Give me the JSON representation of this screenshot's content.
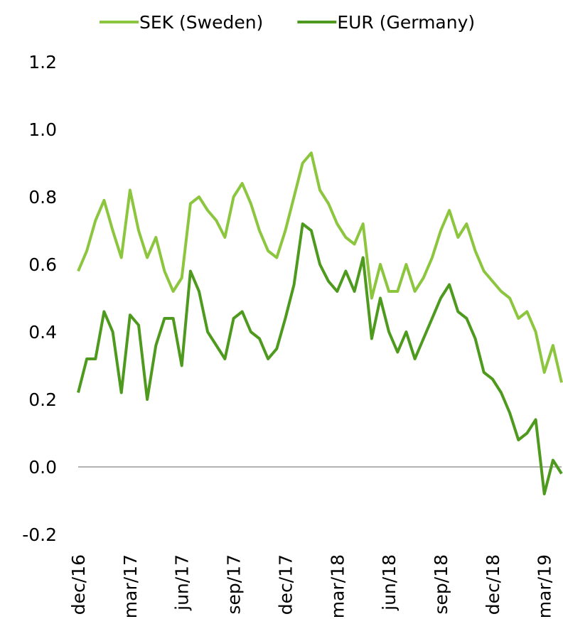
{
  "chart_data": {
    "type": "line",
    "categories": [
      "dec/16",
      null,
      null,
      null,
      null,
      null,
      "mar/17",
      null,
      null,
      null,
      null,
      null,
      "jun/17",
      null,
      null,
      null,
      null,
      null,
      "sep/17",
      null,
      null,
      null,
      null,
      null,
      "dec/17",
      null,
      null,
      null,
      null,
      null,
      "mar/18",
      null,
      null,
      null,
      null,
      null,
      "jun/18",
      null,
      null,
      null,
      null,
      null,
      "sep/18",
      null,
      null,
      null,
      null,
      null,
      "dec/18",
      null,
      null,
      null,
      null,
      null,
      "mar/19",
      null,
      null
    ],
    "series": [
      {
        "name": "SEK (Sweden)",
        "color": "#8cc63f",
        "values": [
          0.58,
          0.64,
          0.73,
          0.79,
          0.7,
          0.62,
          0.82,
          0.7,
          0.62,
          0.68,
          0.58,
          0.52,
          0.56,
          0.78,
          0.8,
          0.76,
          0.73,
          0.68,
          0.8,
          0.84,
          0.78,
          0.7,
          0.64,
          0.62,
          0.7,
          0.8,
          0.9,
          0.93,
          0.82,
          0.78,
          0.72,
          0.68,
          0.66,
          0.72,
          0.5,
          0.6,
          0.52,
          0.52,
          0.6,
          0.52,
          0.56,
          0.62,
          0.7,
          0.76,
          0.68,
          0.72,
          0.64,
          0.58,
          0.55,
          0.52,
          0.5,
          0.44,
          0.46,
          0.4,
          0.28,
          0.36,
          0.25
        ]
      },
      {
        "name": "EUR (Germany)",
        "color": "#4e9a1e",
        "values": [
          0.22,
          0.32,
          0.32,
          0.46,
          0.4,
          0.22,
          0.45,
          0.42,
          0.2,
          0.36,
          0.44,
          0.44,
          0.3,
          0.58,
          0.52,
          0.4,
          0.36,
          0.32,
          0.44,
          0.46,
          0.4,
          0.38,
          0.32,
          0.35,
          0.44,
          0.54,
          0.72,
          0.7,
          0.6,
          0.55,
          0.52,
          0.58,
          0.52,
          0.62,
          0.38,
          0.5,
          0.4,
          0.34,
          0.4,
          0.32,
          0.38,
          0.44,
          0.5,
          0.54,
          0.46,
          0.44,
          0.38,
          0.28,
          0.26,
          0.22,
          0.16,
          0.08,
          0.1,
          0.14,
          -0.08,
          0.02,
          -0.02
        ]
      }
    ],
    "ylim": [
      -0.2,
      1.2
    ],
    "yticks": [
      -0.2,
      0.2,
      0.4,
      0.6,
      0.8,
      {
        "value": 0,
        "label": "0.0"
      },
      {
        "value": 1,
        "label": "1.0"
      },
      1.2
    ],
    "zero_line": true,
    "legend": "top"
  }
}
